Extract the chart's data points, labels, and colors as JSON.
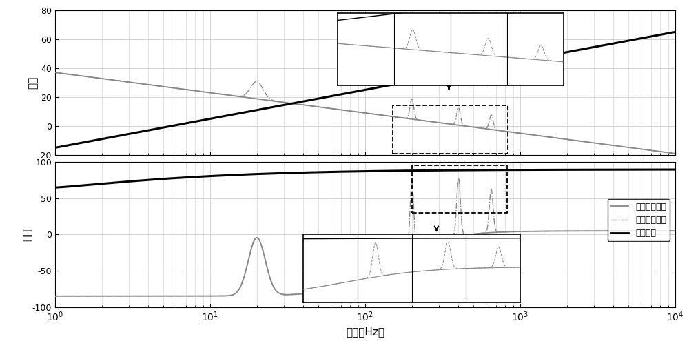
{
  "title": "",
  "xlabel": "频率（Hz）",
  "ylabel_mag": "幅値",
  "ylabel_phase": "相位",
  "freq_range": [
    1,
    10000
  ],
  "mag_ylim": [
    -20,
    80
  ],
  "phase_ylim": [
    -100,
    100
  ],
  "legend_labels": [
    "风机原始阻抗",
    "加入虚拟阻抗",
    "电网阻抗"
  ],
  "mag_yticks": [
    -20,
    0,
    20,
    40,
    60,
    80
  ],
  "phase_yticks": [
    -100,
    -50,
    0,
    50,
    100
  ],
  "grid_color": "#cccccc",
  "background_color": "#ffffff",
  "fan_color": "#888888",
  "virt_color": "#888888",
  "grid_line_color": "#000000"
}
